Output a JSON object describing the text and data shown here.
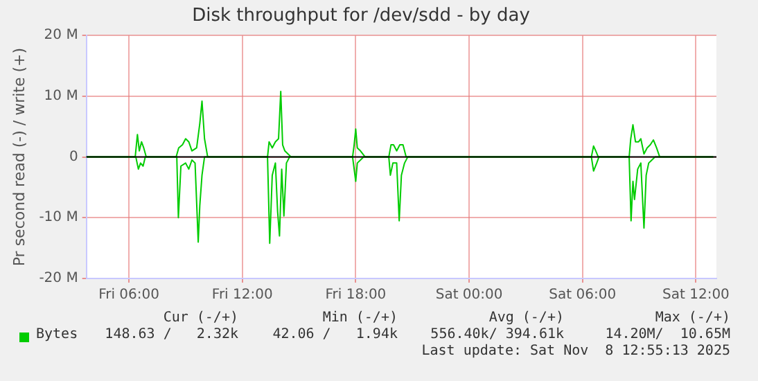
{
  "chart_data": {
    "type": "line",
    "title": "Disk throughput for /dev/sdd - by day",
    "ylabel": "Pr second read (-) / write (+)",
    "xlim": [
      "2025-11-07T03:45",
      "2025-11-08T13:05"
    ],
    "xticks": [
      {
        "value": "2025-11-07T06:00",
        "label": "Fri 06:00"
      },
      {
        "value": "2025-11-07T12:00",
        "label": "Fri 12:00"
      },
      {
        "value": "2025-11-07T18:00",
        "label": "Fri 18:00"
      },
      {
        "value": "2025-11-08T00:00",
        "label": "Sat 00:00"
      },
      {
        "value": "2025-11-08T06:00",
        "label": "Sat 06:00"
      },
      {
        "value": "2025-11-08T12:00",
        "label": "Sat 12:00"
      }
    ],
    "ylim": [
      -20,
      20
    ],
    "yticks": [
      {
        "value": -20,
        "label": "-20 M"
      },
      {
        "value": -10,
        "label": "-10 M"
      },
      0,
      {
        "value": 10,
        "label": "10 M"
      },
      {
        "value": 20,
        "label": "20 M"
      }
    ],
    "grid": true,
    "legend": "bottom",
    "marker": "none",
    "line_style": "solid",
    "ref_lines": [
      {
        "axis": "y",
        "value": 0,
        "color": "#000000"
      }
    ],
    "series": [
      {
        "name": "Bytes",
        "color": "#00cc00",
        "x": [
          "2025-11-07T03:45",
          "2025-11-07T06:20",
          "2025-11-07T06:27",
          "2025-11-07T06:33",
          "2025-11-07T06:40",
          "2025-11-07T06:47",
          "2025-11-07T06:55",
          "2025-11-07T08:30",
          "2025-11-07T08:38",
          "2025-11-07T08:50",
          "2025-11-07T09:00",
          "2025-11-07T09:10",
          "2025-11-07T09:20",
          "2025-11-07T09:35",
          "2025-11-07T09:45",
          "2025-11-07T09:52",
          "2025-11-07T10:00",
          "2025-11-07T10:10",
          "2025-11-07T13:20",
          "2025-11-07T13:25",
          "2025-11-07T13:35",
          "2025-11-07T13:45",
          "2025-11-07T13:55",
          "2025-11-07T14:02",
          "2025-11-07T14:08",
          "2025-11-07T14:15",
          "2025-11-07T14:25",
          "2025-11-07T14:35",
          "2025-11-07T17:50",
          "2025-11-07T17:55",
          "2025-11-07T18:00",
          "2025-11-07T18:05",
          "2025-11-07T18:15",
          "2025-11-07T18:30",
          "2025-11-07T19:45",
          "2025-11-07T19:52",
          "2025-11-07T20:00",
          "2025-11-07T20:10",
          "2025-11-07T20:20",
          "2025-11-07T20:30",
          "2025-11-07T20:40",
          "2025-11-08T06:28",
          "2025-11-08T06:35",
          "2025-11-08T06:42",
          "2025-11-08T06:50",
          "2025-11-08T08:28",
          "2025-11-08T08:33",
          "2025-11-08T08:40",
          "2025-11-08T08:48",
          "2025-11-08T08:58",
          "2025-11-08T09:05",
          "2025-11-08T09:15",
          "2025-11-08T09:25",
          "2025-11-08T09:35",
          "2025-11-08T09:45",
          "2025-11-08T09:55",
          "2025-11-08T10:05",
          "2025-11-08T12:55"
        ],
        "values": [
          0,
          0,
          3.7,
          1.0,
          2.5,
          1.5,
          0,
          0,
          1.5,
          2.0,
          3.0,
          2.5,
          1.0,
          1.5,
          5.5,
          9.2,
          3.0,
          0,
          0,
          2.5,
          1.5,
          2.5,
          3.0,
          10.8,
          2.0,
          1.0,
          0.5,
          0,
          0,
          2.0,
          4.6,
          1.5,
          1.0,
          0,
          0,
          2.0,
          2.0,
          1.0,
          2.0,
          2.0,
          0,
          0,
          1.8,
          1.0,
          0,
          0,
          3.0,
          5.3,
          2.5,
          2.5,
          3.0,
          0.5,
          1.5,
          2.0,
          2.8,
          1.5,
          0,
          0
        ]
      },
      {
        "color": "#00cc00",
        "x": [
          "2025-11-07T03:45",
          "2025-11-07T06:22",
          "2025-11-07T06:30",
          "2025-11-07T06:37",
          "2025-11-07T06:45",
          "2025-11-07T06:52",
          "2025-11-07T08:32",
          "2025-11-07T08:37",
          "2025-11-07T08:45",
          "2025-11-07T09:00",
          "2025-11-07T09:10",
          "2025-11-07T09:20",
          "2025-11-07T09:30",
          "2025-11-07T09:40",
          "2025-11-07T09:45",
          "2025-11-07T09:52",
          "2025-11-07T10:00",
          "2025-11-07T13:20",
          "2025-11-07T13:27",
          "2025-11-07T13:35",
          "2025-11-07T13:45",
          "2025-11-07T13:52",
          "2025-11-07T13:58",
          "2025-11-07T14:05",
          "2025-11-07T14:12",
          "2025-11-07T14:20",
          "2025-11-07T14:30",
          "2025-11-07T17:50",
          "2025-11-07T17:55",
          "2025-11-07T18:00",
          "2025-11-07T18:05",
          "2025-11-07T18:15",
          "2025-11-07T18:25",
          "2025-11-07T19:45",
          "2025-11-07T19:50",
          "2025-11-07T19:58",
          "2025-11-07T20:10",
          "2025-11-07T20:18",
          "2025-11-07T20:25",
          "2025-11-07T20:35",
          "2025-11-07T20:45",
          "2025-11-08T06:28",
          "2025-11-08T06:35",
          "2025-11-08T06:45",
          "2025-11-08T06:52",
          "2025-11-08T08:28",
          "2025-11-08T08:34",
          "2025-11-08T08:40",
          "2025-11-08T08:45",
          "2025-11-08T08:55",
          "2025-11-08T09:05",
          "2025-11-08T09:15",
          "2025-11-08T09:22",
          "2025-11-08T09:30",
          "2025-11-08T09:40",
          "2025-11-08T09:50",
          "2025-11-08T12:55"
        ],
        "values": [
          0,
          0,
          -2.0,
          -1.0,
          -1.5,
          0,
          0,
          -10.0,
          -1.5,
          -1.0,
          -2.0,
          -0.5,
          -1.0,
          -14.0,
          -8.0,
          -3.0,
          0,
          0,
          -14.2,
          -3.0,
          -1.0,
          -9.0,
          -13.0,
          -2.0,
          -9.7,
          -1.0,
          0,
          0,
          -2.0,
          -4.0,
          -1.0,
          -0.5,
          0,
          0,
          -3.0,
          -1.0,
          -1.0,
          -10.5,
          -3.0,
          -1.0,
          0,
          0,
          -2.3,
          -1.0,
          0,
          0,
          -10.5,
          -4.0,
          -7.0,
          -2.0,
          -1.0,
          -11.7,
          -3.0,
          -1.0,
          -0.5,
          0,
          0
        ]
      }
    ],
    "annotations": [
      "Cur (-/+)",
      "Min (-/+)",
      "Avg (-/+)",
      "Max (-/+)",
      "148.63 /   2.32k",
      "42.06 /   1.94k",
      "556.40k/ 394.61k",
      "14.20M/  10.65M",
      "Last update: Sat Nov  8 12:55:13 2025"
    ]
  }
}
